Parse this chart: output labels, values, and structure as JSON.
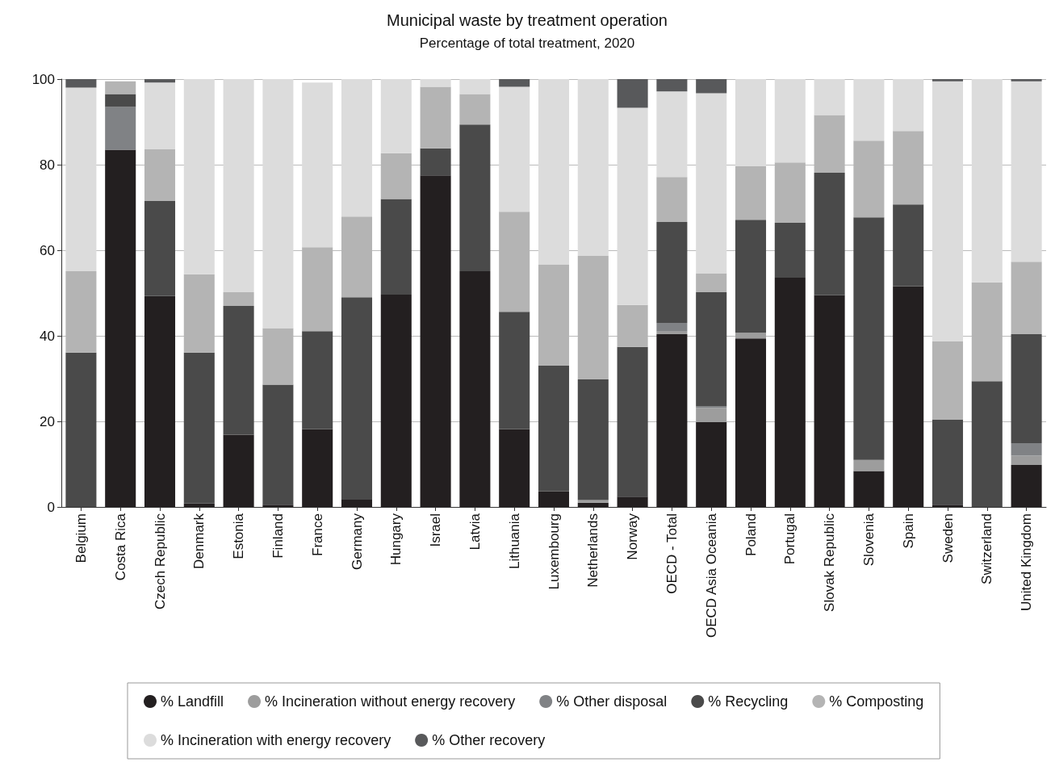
{
  "chart_data": {
    "type": "bar",
    "stacked": true,
    "title": "Municipal waste by treatment operation",
    "subtitle": "Percentage of total treatment, 2020",
    "categories": [
      "Belgium",
      "Costa Rica",
      "Czech Republic",
      "Denmark",
      "Estonia",
      "Finland",
      "France",
      "Germany",
      "Hungary",
      "Israel",
      "Latvia",
      "Lithuania",
      "Luxembourg",
      "Netherlands",
      "Norway",
      "OECD - Total",
      "OECD Asia Oceania",
      "Poland",
      "Portugal",
      "Slovak Republic",
      "Slovenia",
      "Spain",
      "Sweden",
      "Switzerland",
      "United Kingdom"
    ],
    "series": [
      {
        "name": "% Landfill",
        "color": "#231f20",
        "values": [
          0,
          83.5,
          49.3,
          0.8,
          16.9,
          0.5,
          18.2,
          1.7,
          49.6,
          77.5,
          55.1,
          18.2,
          3.7,
          1.0,
          2.4,
          40.4,
          19.8,
          39.4,
          53.6,
          49.5,
          8.4,
          51.6,
          0.5,
          0,
          9.8
        ]
      },
      {
        "name": "% Incineration without energy recovery",
        "color": "#9d9d9d",
        "values": [
          0,
          0,
          0,
          0,
          0,
          0,
          0,
          0,
          0,
          0,
          0,
          0,
          0,
          0.6,
          0,
          0.6,
          3.3,
          1.3,
          0,
          0,
          2.6,
          0,
          0,
          0,
          2.2
        ]
      },
      {
        "name": "% Other disposal",
        "color": "#808285",
        "values": [
          0,
          10,
          0,
          0,
          0,
          0,
          0,
          0,
          0,
          0,
          0,
          0,
          0,
          0,
          0,
          2,
          0.4,
          0,
          0,
          0,
          0,
          0,
          0,
          0,
          2.9
        ]
      },
      {
        "name": "% Recycling",
        "color": "#4a4a4a",
        "values": [
          36.1,
          3,
          22.2,
          35.3,
          30.1,
          28.1,
          22.9,
          47.3,
          22.4,
          6.3,
          34.3,
          27.4,
          29.3,
          28.2,
          35,
          23.6,
          26.7,
          26.4,
          12.8,
          28.6,
          56.7,
          19.1,
          19.9,
          29.4,
          25.5
        ]
      },
      {
        "name": "% Composting",
        "color": "#b4b4b4",
        "values": [
          19,
          3,
          12.1,
          18.3,
          3.2,
          13.2,
          19.6,
          18.9,
          10.7,
          14.4,
          7.1,
          23.4,
          23.7,
          28.9,
          9.8,
          10.5,
          4.4,
          12.5,
          14.1,
          13.5,
          17.9,
          17.2,
          18.3,
          23.1,
          16.9
        ]
      },
      {
        "name": "% Incineration with energy recovery",
        "color": "#dcdcdc",
        "values": [
          42.9,
          0,
          15.6,
          45.6,
          49.8,
          58.2,
          38.5,
          32.1,
          17.3,
          1.8,
          3.5,
          29.2,
          43.3,
          41.3,
          46.1,
          20,
          42.1,
          20.4,
          19.5,
          8.4,
          14.4,
          12.1,
          60.8,
          47.5,
          42.2
        ]
      },
      {
        "name": "% Other recovery",
        "color": "#58595b",
        "values": [
          2,
          0,
          0.8,
          0,
          0,
          0,
          0,
          0,
          0,
          0,
          0,
          1.8,
          0,
          0,
          6.7,
          2.9,
          3.3,
          0,
          0,
          0,
          0,
          0,
          0.5,
          0,
          0.5
        ]
      }
    ],
    "ylim": [
      0,
      100
    ],
    "yticks": [
      0,
      20,
      40,
      60,
      80,
      100
    ],
    "grid": "y",
    "legend": "bottom"
  }
}
